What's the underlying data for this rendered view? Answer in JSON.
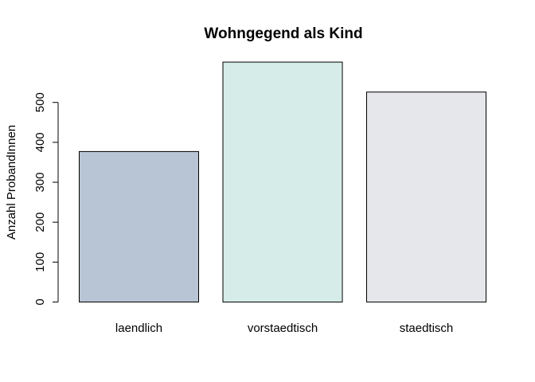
{
  "chart_data": {
    "type": "bar",
    "title": "Wohngegend als Kind",
    "xlabel": "",
    "ylabel": "Anzahl ProbandInnen",
    "categories": [
      "laendlich",
      "vorstaedtisch",
      "staedtisch"
    ],
    "values": [
      377,
      601,
      526
    ],
    "colors": [
      "#b8c5d4",
      "#d6ece9",
      "#e6e7eb"
    ],
    "yticks": [
      0,
      100,
      200,
      300,
      400,
      500
    ],
    "ylim": [
      0,
      600
    ],
    "grid": false,
    "legend": "none"
  }
}
